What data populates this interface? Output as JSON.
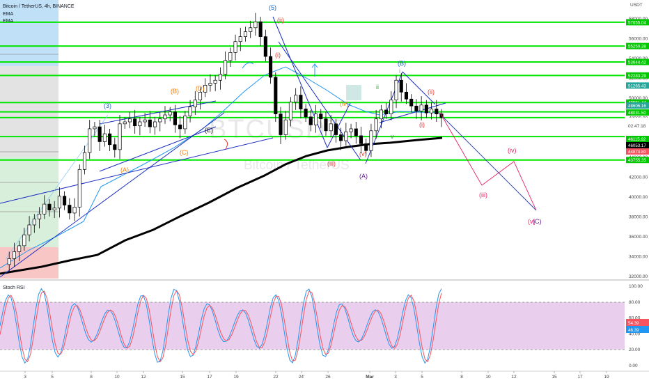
{
  "header": {
    "title": "Bitcoin / TetherUS, 4h, BINANCE",
    "indicators": [
      "EMA",
      "EMA"
    ]
  },
  "watermark": {
    "symbol": "BTCUSDT",
    "name": "Bitcoin / TetherUS"
  },
  "axis": {
    "currency_label": "USDT"
  },
  "price_labels": {
    "p58000": "58000.00",
    "p56000": "56000.00",
    "p54000": "54000.00",
    "p52000": "52000.00",
    "p50000": "50000.00",
    "p48000": "48000.00",
    "p46000": "46000.00",
    "p44000": "44000.00",
    "p42000": "42000.00",
    "p40000": "40000.00",
    "p38000": "38000.00",
    "p36000": "36000.00",
    "p34000": "34000.00",
    "p32000": "32000.00"
  },
  "level_labels": {
    "l1": "57655.04",
    "l2": "55250.38",
    "l3": "53644.42",
    "l4": "52283.29",
    "l5": "51265.43",
    "l6": "49551.44",
    "l7": "48606.16",
    "l8": "48031.50",
    "l9": "47727.45",
    "l10": "47110.09",
    "l11": "46115.92",
    "l12": "46053.17",
    "l13": "44874.80",
    "l14": "43755.35"
  },
  "extra_labels": {
    "timer": "02:47:18"
  },
  "date_labels": {
    "d3": "3",
    "d5": "5",
    "d8": "8",
    "d10": "10",
    "d12": "12",
    "d15": "15",
    "d17": "17",
    "d19": "19",
    "d22": "22",
    "d24": "24'",
    "d26": "26",
    "dmar": "Mar",
    "d3b": "3",
    "d5b": "5",
    "d8b": "8",
    "d10b": "10",
    "d12b": "12",
    "d15b": "15",
    "d17b": "17",
    "d19b": "19"
  },
  "rsi": {
    "title": "Stoch RSI",
    "ticks": {
      "t100": "100.00",
      "t80": "80.00",
      "t60": "60.00",
      "t40": "40.00",
      "t20": "20.00",
      "t0": "0.00"
    },
    "k_value": "54.39",
    "d_value": "46.39"
  },
  "waves": {
    "w3": "(3)",
    "w5": "(5)",
    "wA": "(A)",
    "wB": "(B)",
    "wC": "(C)",
    "wD": "(D)",
    "wE": "(E)",
    "wi": "(i)",
    "wii": "(ii)",
    "wiii": "(iii)",
    "wiv": "(iv)",
    "wv": "(v)",
    "wAbig": "(A)",
    "wBbig": "(B)",
    "wCbig": "(C)",
    "wi2": "(i)",
    "wii2": "(ii)",
    "wiii2": "(iii)",
    "wiv2": "(iv)",
    "wiii3": "(iii)",
    "wiv3": "(iv)",
    "wv3": "(v)",
    "wi_pink": "(i)",
    "wii_pink": "(ii)",
    "gi": "i",
    "gii": "ii",
    "gv": "v",
    "wsmall_i": "i"
  },
  "colors": {
    "level_green": "#00e600",
    "ema_fast": "#2196f3",
    "ema_slow": "#000000",
    "trend_line": "#1a2ebf",
    "rsi_k": "#2196f3",
    "rsi_d": "#f7525f",
    "rsi_band": "#e1bee7",
    "candle_up": "#000000",
    "candle_down": "#000000",
    "projection": "#e91e63",
    "wave_orange": "#f57c00",
    "wave_red": "#e53935",
    "wave_purple": "#6a1b9a",
    "wave_blue": "#1565c0"
  },
  "chart_data": {
    "type": "line",
    "instrument": "Bitcoin / TetherUS, 4h, BINANCE",
    "y_axis_unit": "USDT",
    "ylim": [
      32000,
      60000
    ],
    "horizontal_levels": [
      57655.04,
      55250.38,
      53644.42,
      52283.29,
      49551.44,
      48606.16,
      48031.5,
      46115.92,
      43755.35
    ],
    "series": [
      {
        "name": "price",
        "points": [
          [
            "Feb 1",
            33200
          ],
          [
            "Feb 2",
            34000
          ],
          [
            "Feb 3",
            35200
          ],
          [
            "Feb 4",
            37100
          ],
          [
            "Feb 5",
            38200
          ],
          [
            "Feb 6",
            39400
          ],
          [
            "Feb 7",
            38600
          ],
          [
            "Feb 8",
            43500
          ],
          [
            "Feb 9",
            47100
          ],
          [
            "Feb 10",
            45600
          ],
          [
            "Feb 11",
            47800
          ],
          [
            "Feb 12",
            47600
          ],
          [
            "Feb 13",
            47200
          ],
          [
            "Feb 14",
            48600
          ],
          [
            "Feb 15",
            46900
          ],
          [
            "Feb 16",
            49200
          ],
          [
            "Feb 17",
            51800
          ],
          [
            "Feb 18",
            52100
          ],
          [
            "Feb 19",
            55600
          ],
          [
            "Feb 20",
            56800
          ],
          [
            "Feb 21",
            57700
          ],
          [
            "Feb 22",
            53700
          ],
          [
            "Feb 23",
            47200
          ],
          [
            "Feb 24",
            50500
          ],
          [
            "Feb 25",
            48400
          ],
          [
            "Feb 26",
            46600
          ],
          [
            "Feb 27",
            46300
          ],
          [
            "Feb 28",
            44700
          ],
          [
            "Mar 1",
            48800
          ],
          [
            "Mar 2",
            48400
          ],
          [
            "Mar 3",
            51900
          ],
          [
            "Mar 4",
            49200
          ],
          [
            "Mar 5",
            48500
          ],
          [
            "Mar 6",
            48900
          ],
          [
            "Mar 6b",
            48031.5
          ]
        ]
      },
      {
        "name": "projection",
        "points": [
          [
            "Mar 7",
            48200
          ],
          [
            "Mar 9",
            41400
          ],
          [
            "Mar 12",
            43800
          ],
          [
            "Mar 14",
            38200
          ]
        ]
      }
    ],
    "stoch_rsi": {
      "k": 54.39,
      "d": 46.39,
      "bands": [
        20,
        80
      ],
      "range": [
        0,
        100
      ]
    }
  }
}
